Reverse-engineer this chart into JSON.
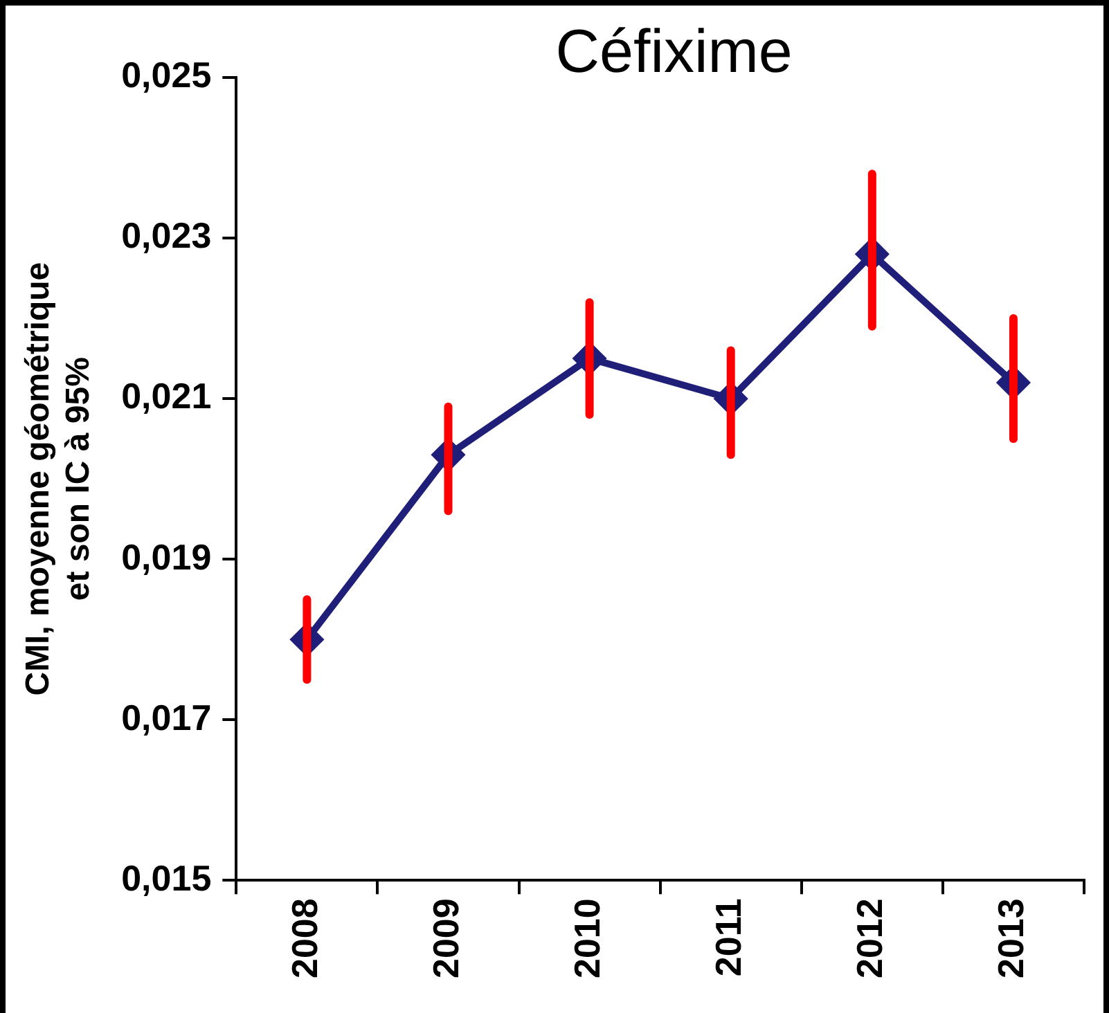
{
  "chart_data": {
    "type": "line",
    "title": "Céfixime",
    "ylabel": "CMI, moyenne géométrique\net son IC à 95%",
    "categories": [
      "2008",
      "2009",
      "2010",
      "2011",
      "2012",
      "2013"
    ],
    "series": [
      {
        "color": "#1f1f7a",
        "values": [
          0.018,
          0.0203,
          0.0215,
          0.021,
          0.0228,
          0.0212
        ],
        "errors": [
          [
            0.0175,
            0.0185
          ],
          [
            0.0196,
            0.0209
          ],
          [
            0.0208,
            0.0222
          ],
          [
            0.0203,
            0.0216
          ],
          [
            0.0219,
            0.0238
          ],
          [
            0.0205,
            0.022
          ]
        ]
      }
    ],
    "ylim": [
      0.015,
      0.025
    ],
    "yticks": [
      {
        "value": 0.015,
        "label": "0,015"
      },
      {
        "value": 0.017,
        "label": "0,017"
      },
      {
        "value": 0.019,
        "label": "0,019"
      },
      {
        "value": 0.021,
        "label": "0,021"
      },
      {
        "value": 0.023,
        "label": "0,023"
      },
      {
        "value": 0.025,
        "label": "0,025"
      }
    ],
    "grid": false,
    "legend": false,
    "marker": "diamond",
    "line_style": "solid"
  }
}
